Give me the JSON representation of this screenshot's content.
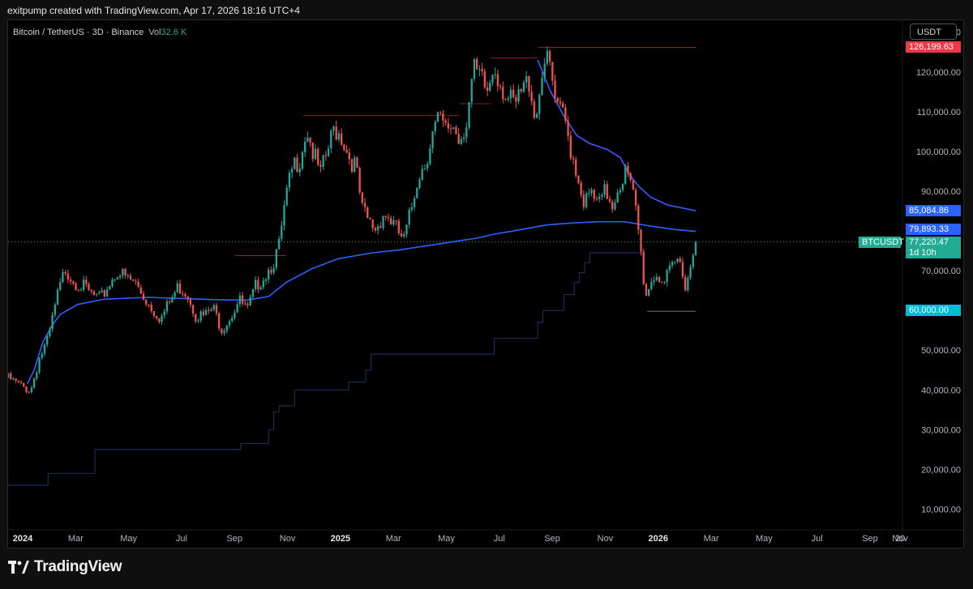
{
  "caption": "exitpump created with TradingView.com, Apr 17, 2026 18:16 UTC+4",
  "header": {
    "symbol_text": "Bitcoin / TetherUS · 3D · Binance",
    "vol_label": "Vol",
    "vol_value": "32.6 K",
    "currency_button": "USDT"
  },
  "brand": {
    "name": "TradingView"
  },
  "colors": {
    "up": "#26a69a",
    "down": "#ef5350",
    "ma_200": "#2962ff",
    "ma_short": "#3d5afe",
    "floor_line": "#1e2a55",
    "high_tag": "#f23645",
    "ma_tag": "#2962ff",
    "current_tag": "#22ab94",
    "support_tag": "#00bcd4"
  },
  "price_tags": [
    {
      "name": "high-price-tag",
      "value": 126199.63,
      "text": "126,199.63",
      "color": "#f23645"
    },
    {
      "name": "ma-short-price-tag",
      "value": 85084.86,
      "text": "85,084.86",
      "color": "#2962ff"
    },
    {
      "name": "ma-long-price-tag",
      "value": 79893.33,
      "text": "79,893.33",
      "color": "#2962ff"
    },
    {
      "name": "current-price-tag",
      "value": 77220.47,
      "text": "77,220.47",
      "color": "#22ab94"
    },
    {
      "name": "support-price-tag",
      "value": 60000,
      "text": "60,000.00",
      "color": "#00bcd4"
    }
  ],
  "symbol_tag": "BTCUSDT",
  "countdown": "1d 10h",
  "chart_data": {
    "type": "candlestick",
    "x_axis_labels": [
      "2024",
      "Mar",
      "May",
      "Jul",
      "Sep",
      "Nov",
      "2025",
      "Mar",
      "May",
      "Jul",
      "Sep",
      "Nov",
      "2026",
      "Mar",
      "May",
      "Jul",
      "Sep",
      "Nov",
      "20"
    ],
    "x_axis_bold": [
      "2024",
      "2025",
      "2026"
    ],
    "y_axis_ticks": [
      10000,
      20000,
      30000,
      40000,
      50000,
      60000,
      70000,
      90000,
      100000,
      110000,
      120000,
      130000
    ],
    "y_axis_labels": [
      "10,000.00",
      "20,000.00",
      "30,000.00",
      "40,000.00",
      "50,000.00",
      "60,000.00",
      "70,000.00",
      "90,000.00",
      "100,000.00",
      "110,000.00",
      "120,000.00",
      "130,000.00"
    ],
    "ylim": [
      5000,
      133000
    ],
    "x_range_days": [
      0,
      792
    ],
    "close_series": [
      [
        0,
        43000
      ],
      [
        15,
        41000
      ],
      [
        26,
        39800
      ],
      [
        36,
        48000
      ],
      [
        46,
        52500
      ],
      [
        56,
        63000
      ],
      [
        66,
        70500
      ],
      [
        76,
        67500
      ],
      [
        86,
        66000
      ],
      [
        96,
        64000
      ],
      [
        106,
        62500
      ],
      [
        116,
        66500
      ],
      [
        126,
        70000
      ],
      [
        136,
        68000
      ],
      [
        146,
        67000
      ],
      [
        156,
        63500
      ],
      [
        166,
        60500
      ],
      [
        176,
        58000
      ],
      [
        186,
        62000
      ],
      [
        196,
        66000
      ],
      [
        206,
        64500
      ],
      [
        216,
        59000
      ],
      [
        226,
        58500
      ],
      [
        236,
        60500
      ],
      [
        246,
        55500
      ],
      [
        256,
        58500
      ],
      [
        266,
        62500
      ],
      [
        276,
        60000
      ],
      [
        286,
        66500
      ],
      [
        296,
        69000
      ],
      [
        306,
        72500
      ],
      [
        312,
        76000
      ],
      [
        320,
        88000
      ],
      [
        328,
        96000
      ],
      [
        336,
        98500
      ],
      [
        344,
        106000
      ],
      [
        352,
        99000
      ],
      [
        360,
        94000
      ],
      [
        368,
        100000
      ],
      [
        376,
        106000
      ],
      [
        384,
        104000
      ],
      [
        392,
        99000
      ],
      [
        400,
        96500
      ],
      [
        408,
        85000
      ],
      [
        416,
        82000
      ],
      [
        424,
        80500
      ],
      [
        432,
        84500
      ],
      [
        440,
        83000
      ],
      [
        448,
        80000
      ],
      [
        456,
        77500
      ],
      [
        464,
        85000
      ],
      [
        472,
        94000
      ],
      [
        480,
        97000
      ],
      [
        488,
        104000
      ],
      [
        496,
        108000
      ],
      [
        504,
        105000
      ],
      [
        512,
        107000
      ],
      [
        520,
        103000
      ],
      [
        528,
        108000
      ],
      [
        536,
        120000
      ],
      [
        544,
        118000
      ],
      [
        552,
        115000
      ],
      [
        560,
        122000
      ],
      [
        568,
        117000
      ],
      [
        576,
        113000
      ],
      [
        584,
        111000
      ],
      [
        592,
        115000
      ],
      [
        600,
        118000
      ],
      [
        608,
        108000
      ],
      [
        616,
        123000
      ],
      [
        624,
        121000
      ],
      [
        632,
        110000
      ],
      [
        640,
        109000
      ],
      [
        648,
        101000
      ],
      [
        656,
        94000
      ],
      [
        664,
        87000
      ],
      [
        672,
        89000
      ],
      [
        680,
        86000
      ],
      [
        688,
        90000
      ],
      [
        696,
        87000
      ],
      [
        704,
        92000
      ],
      [
        712,
        95000
      ],
      [
        720,
        88500
      ],
      [
        724,
        84000
      ],
      [
        728,
        76000
      ],
      [
        732,
        68000
      ],
      [
        736,
        63000
      ],
      [
        740,
        68000
      ],
      [
        748,
        69000
      ],
      [
        756,
        67000
      ],
      [
        764,
        70000
      ],
      [
        772,
        73000
      ],
      [
        780,
        67000
      ],
      [
        786,
        71000
      ],
      [
        792,
        77220
      ]
    ],
    "ma_long": [
      [
        22,
        41500
      ],
      [
        30,
        45000
      ],
      [
        40,
        52000
      ],
      [
        50,
        56000
      ],
      [
        60,
        59000
      ],
      [
        80,
        61500
      ],
      [
        110,
        62800
      ],
      [
        160,
        63300
      ],
      [
        200,
        63000
      ],
      [
        240,
        62700
      ],
      [
        275,
        62600
      ],
      [
        300,
        63500
      ],
      [
        320,
        67000
      ],
      [
        350,
        70500
      ],
      [
        380,
        73000
      ],
      [
        420,
        74500
      ],
      [
        450,
        75200
      ],
      [
        480,
        76200
      ],
      [
        510,
        77200
      ],
      [
        540,
        78200
      ],
      [
        560,
        79200
      ],
      [
        590,
        80300
      ],
      [
        620,
        81500
      ],
      [
        650,
        82000
      ],
      [
        680,
        82300
      ],
      [
        710,
        82300
      ],
      [
        740,
        81200
      ],
      [
        770,
        80300
      ],
      [
        792,
        79893
      ]
    ],
    "ma_short": [
      [
        610,
        123000
      ],
      [
        625,
        115000
      ],
      [
        640,
        109000
      ],
      [
        655,
        104000
      ],
      [
        670,
        102000
      ],
      [
        690,
        100500
      ],
      [
        705,
        98500
      ],
      [
        715,
        94500
      ],
      [
        725,
        91500
      ],
      [
        740,
        88500
      ],
      [
        760,
        86500
      ],
      [
        792,
        85085
      ]
    ],
    "floor_line": [
      [
        0,
        16000
      ],
      [
        46,
        16000
      ],
      [
        46,
        19000
      ],
      [
        100,
        19000
      ],
      [
        100,
        25000
      ],
      [
        268,
        25000
      ],
      [
        268,
        26500
      ],
      [
        300,
        26500
      ],
      [
        300,
        30000
      ],
      [
        306,
        30000
      ],
      [
        306,
        34500
      ],
      [
        312,
        34500
      ],
      [
        312,
        36000
      ],
      [
        330,
        36000
      ],
      [
        330,
        40000
      ],
      [
        392,
        40000
      ],
      [
        392,
        42000
      ],
      [
        412,
        42000
      ],
      [
        412,
        45000
      ],
      [
        418,
        45000
      ],
      [
        418,
        49000
      ],
      [
        560,
        49000
      ],
      [
        560,
        53000
      ],
      [
        610,
        53000
      ],
      [
        610,
        57000
      ],
      [
        616,
        57000
      ],
      [
        616,
        60000
      ],
      [
        640,
        60000
      ],
      [
        640,
        64000
      ],
      [
        652,
        64000
      ],
      [
        652,
        67000
      ],
      [
        658,
        67000
      ],
      [
        658,
        69500
      ],
      [
        664,
        69500
      ],
      [
        664,
        72000
      ],
      [
        670,
        72000
      ],
      [
        670,
        74500
      ],
      [
        732,
        74500
      ]
    ],
    "levels": [
      {
        "from": 262,
        "to": 320,
        "y": 73800,
        "color": "#b2263b"
      },
      {
        "from": 340,
        "to": 520,
        "y": 109000,
        "color": "#b2263b"
      },
      {
        "from": 520,
        "to": 556,
        "y": 112000,
        "color": "#b2263b"
      },
      {
        "from": 556,
        "to": 610,
        "y": 123500,
        "color": "#b2263b"
      },
      {
        "from": 610,
        "to": 792,
        "y": 126199,
        "color": "#b2263b"
      },
      {
        "from": 736,
        "to": 792,
        "y": 59800,
        "color": "#999999"
      }
    ],
    "current_price": 77220.47
  }
}
